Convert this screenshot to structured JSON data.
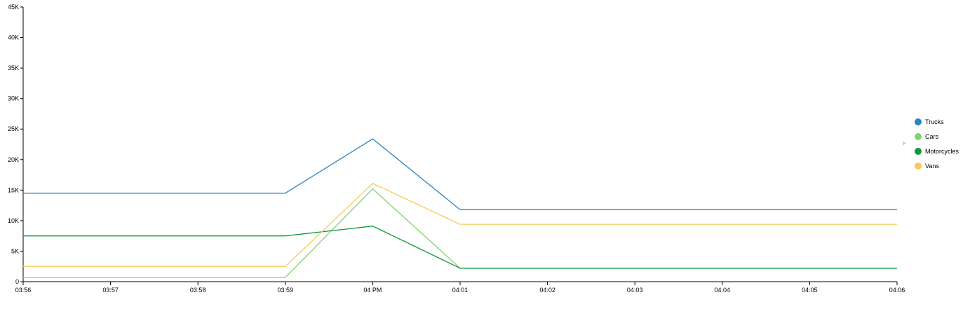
{
  "chart_data": {
    "type": "line",
    "title": "",
    "xlabel": "",
    "ylabel": "",
    "x": [
      "03:56",
      "03:57",
      "03:58",
      "03:59",
      "04 PM",
      "04:01",
      "04:02",
      "04:03",
      "04:04",
      "04:05",
      "04:06"
    ],
    "ylim": [
      0,
      45000
    ],
    "y_ticks": [
      {
        "value": 0,
        "label": "0"
      },
      {
        "value": 5000,
        "label": "5K"
      },
      {
        "value": 10000,
        "label": "10K"
      },
      {
        "value": 15000,
        "label": "15K"
      },
      {
        "value": 20000,
        "label": "20K"
      },
      {
        "value": 25000,
        "label": "25K"
      },
      {
        "value": 30000,
        "label": "30K"
      },
      {
        "value": 35000,
        "label": "35K"
      },
      {
        "value": 40000,
        "label": "40K"
      },
      {
        "value": 45000,
        "label": "45K"
      }
    ],
    "grid": false,
    "legend_position": "right",
    "series": [
      {
        "name": "Trucks",
        "color": "#2b85c4",
        "values": [
          14500,
          14500,
          14500,
          14500,
          23400,
          11800,
          11800,
          11800,
          11800,
          11800,
          11800
        ]
      },
      {
        "name": "Cars",
        "color": "#7fd46b",
        "values": [
          700,
          700,
          700,
          700,
          15200,
          2200,
          2200,
          2200,
          2200,
          2200,
          2200
        ]
      },
      {
        "name": "Motorcycles",
        "color": "#0a9a3a",
        "values": [
          7500,
          7500,
          7500,
          7500,
          9100,
          2200,
          2200,
          2200,
          2200,
          2200,
          2200
        ]
      },
      {
        "name": "Vans",
        "color": "#f5cc5a",
        "values": [
          2500,
          2500,
          2500,
          2500,
          16100,
          9400,
          9400,
          9400,
          9400,
          9400,
          9400
        ]
      }
    ]
  }
}
